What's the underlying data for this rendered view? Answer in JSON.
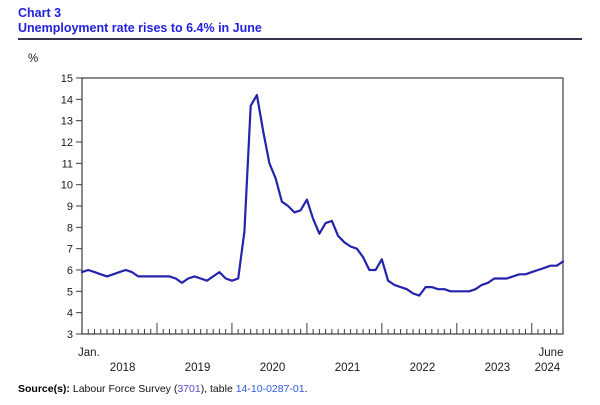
{
  "header": {
    "chart_label": "Chart 3",
    "title": "Unemployment rate rises to 6.4% in June"
  },
  "axes": {
    "unit_label": "%",
    "x_start_label": "Jan.",
    "x_end_label": "June"
  },
  "source": {
    "prefix": "Source(s):",
    "segment_1": " Labour Force Survey (",
    "link_1": "3701",
    "segment_2": "), table ",
    "link_2": "14-10-0287-01",
    "segment_3": "."
  },
  "colors": {
    "title": "#2222dd",
    "line": "#2323ab",
    "rule": "#33334d",
    "axis": "#3c3c3c",
    "text": "#1a1a1a",
    "link": "#2e5cdb",
    "link_visited": "#5b48c2"
  },
  "chart_data": {
    "type": "line",
    "title": "Unemployment rate rises to 6.4% in June",
    "ylabel": "%",
    "xlabel": "",
    "ylim": [
      3,
      15
    ],
    "y_ticks": [
      3,
      4,
      5,
      6,
      7,
      8,
      9,
      10,
      11,
      12,
      13,
      14,
      15
    ],
    "grid": false,
    "legend": "none",
    "x_start": "2018-01",
    "x_end": "2024-06",
    "x_year_labels": [
      "2018",
      "2019",
      "2020",
      "2021",
      "2022",
      "2023",
      "2024"
    ],
    "series_name": "Unemployment rate (%)",
    "values": [
      5.9,
      6.0,
      5.9,
      5.8,
      5.7,
      5.8,
      5.9,
      6.0,
      5.9,
      5.7,
      5.7,
      5.7,
      5.7,
      5.7,
      5.7,
      5.6,
      5.4,
      5.6,
      5.7,
      5.6,
      5.5,
      5.7,
      5.9,
      5.6,
      5.5,
      5.6,
      7.8,
      13.7,
      14.2,
      12.5,
      11.0,
      10.3,
      9.2,
      9.0,
      8.7,
      8.8,
      9.3,
      8.4,
      7.7,
      8.2,
      8.3,
      7.6,
      7.3,
      7.1,
      7.0,
      6.6,
      6.0,
      6.0,
      6.5,
      5.5,
      5.3,
      5.2,
      5.1,
      4.9,
      4.8,
      5.2,
      5.2,
      5.1,
      5.1,
      5.0,
      5.0,
      5.0,
      5.0,
      5.1,
      5.3,
      5.4,
      5.6,
      5.6,
      5.6,
      5.7,
      5.8,
      5.8,
      5.9,
      6.0,
      6.1,
      6.2,
      6.2,
      6.4
    ]
  }
}
